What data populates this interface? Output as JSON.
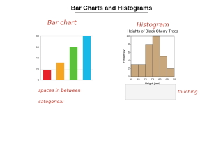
{
  "title": "Bar Charts and Histograms",
  "notes": [
    "Bar chart",
    "Histogram",
    "spaces in between",
    "categorical",
    "touching"
  ],
  "chart_data": [
    {
      "type": "bar",
      "categories": [
        null,
        null,
        null,
        null
      ],
      "values": [
        18,
        32,
        60,
        80
      ],
      "colors": [
        "#e8202a",
        "#f5a623",
        "#5cc13a",
        "#18b9e6"
      ],
      "ylim": [
        0,
        80
      ],
      "yticks": [
        0,
        20,
        40,
        60,
        80
      ],
      "grid": true
    },
    {
      "type": "histogram",
      "title": "Heights of Black Cherry Trees",
      "xlabel": "Height (feet)",
      "ylabel": "Frequency",
      "bins": [
        60,
        65,
        70,
        75,
        80,
        85,
        90
      ],
      "values": [
        3,
        3,
        8,
        10,
        5,
        2
      ],
      "color": "#c9a77c",
      "xlim": [
        60,
        90
      ],
      "xticks": [
        60,
        65,
        70,
        75,
        80,
        85,
        90
      ],
      "ylim": [
        0,
        10
      ],
      "yticks": [
        0,
        2,
        4,
        6,
        8,
        10
      ]
    }
  ]
}
